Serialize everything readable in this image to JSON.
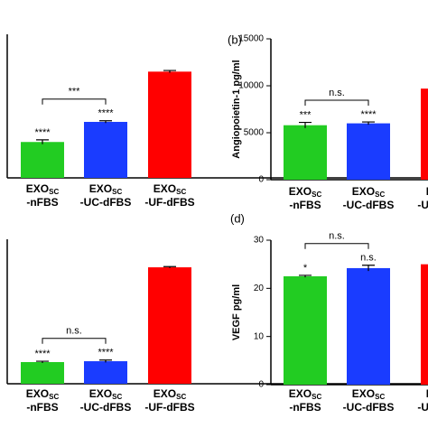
{
  "chart_data": [
    {
      "type": "bar",
      "ylim": [
        0,
        100
      ],
      "categories": [
        {
          "name": "EXO",
          "sub": "SC",
          "suffix": "-nFBS"
        },
        {
          "name": "EXO",
          "sub": "SC",
          "suffix": "-UC-dFBS"
        },
        {
          "name": "EXO",
          "sub": "SC",
          "suffix": "-UF-dFBS"
        }
      ],
      "colors": [
        "#22cc22",
        "#1a3cff",
        "#ff0000"
      ],
      "values": [
        25,
        39,
        74
      ],
      "errors": [
        1.5,
        0.8,
        0.8
      ],
      "significance": [
        "****",
        "****",
        null
      ],
      "comparison": "***"
    },
    {
      "type": "bar",
      "panel": "(b)",
      "y_label": "Angiopoietin-1 pg/ml",
      "ylim": [
        0,
        15000
      ],
      "yticks": [
        0,
        5000,
        10000,
        15000
      ],
      "categories": [
        {
          "name": "EXO",
          "sub": "SC",
          "suffix": "-nFBS"
        },
        {
          "name": "EXO",
          "sub": "SC",
          "suffix": "-UC-dFBS"
        },
        {
          "name": "EXO",
          "sub": "SC",
          "suffix": "-UF-dFBS"
        }
      ],
      "colors": [
        "#22cc22",
        "#1a3cff",
        "#ff0000"
      ],
      "values": [
        5800,
        6000,
        9700
      ],
      "errors": [
        300,
        150,
        200
      ],
      "significance": [
        "***",
        "****",
        null
      ],
      "comparison": "n.s."
    },
    {
      "type": "bar",
      "ylim": [
        0,
        100
      ],
      "categories": [
        {
          "name": "EXO",
          "sub": "SC",
          "suffix": "-nFBS"
        },
        {
          "name": "EXO",
          "sub": "SC",
          "suffix": "-UC-dFBS"
        },
        {
          "name": "EXO",
          "sub": "SC",
          "suffix": "-UF-dFBS"
        }
      ],
      "colors": [
        "#22cc22",
        "#1a3cff",
        "#ff0000"
      ],
      "values": [
        15,
        15.6,
        80.6
      ],
      "errors": [
        0.6,
        0.8,
        0.5
      ],
      "significance": [
        "****",
        "****",
        null
      ],
      "comparison": "n.s."
    },
    {
      "type": "bar",
      "panel": "(d)",
      "y_label": "VEGF pg/ml",
      "ylim": [
        0,
        30
      ],
      "yticks": [
        0,
        10,
        20,
        30
      ],
      "categories": [
        {
          "name": "EXO",
          "sub": "SC",
          "suffix": "-nFBS"
        },
        {
          "name": "EXO",
          "sub": "SC",
          "suffix": "-UC-dFBS"
        },
        {
          "name": "EXO",
          "sub": "SC",
          "suffix": "-UF-dFBS"
        }
      ],
      "colors": [
        "#22cc22",
        "#1a3cff",
        "#ff0000"
      ],
      "values": [
        22.5,
        24.2,
        25
      ],
      "errors": [
        0.2,
        0.6,
        0.3
      ],
      "significance": [
        "*",
        "n.s.",
        null
      ],
      "comparison": "n.s."
    }
  ]
}
